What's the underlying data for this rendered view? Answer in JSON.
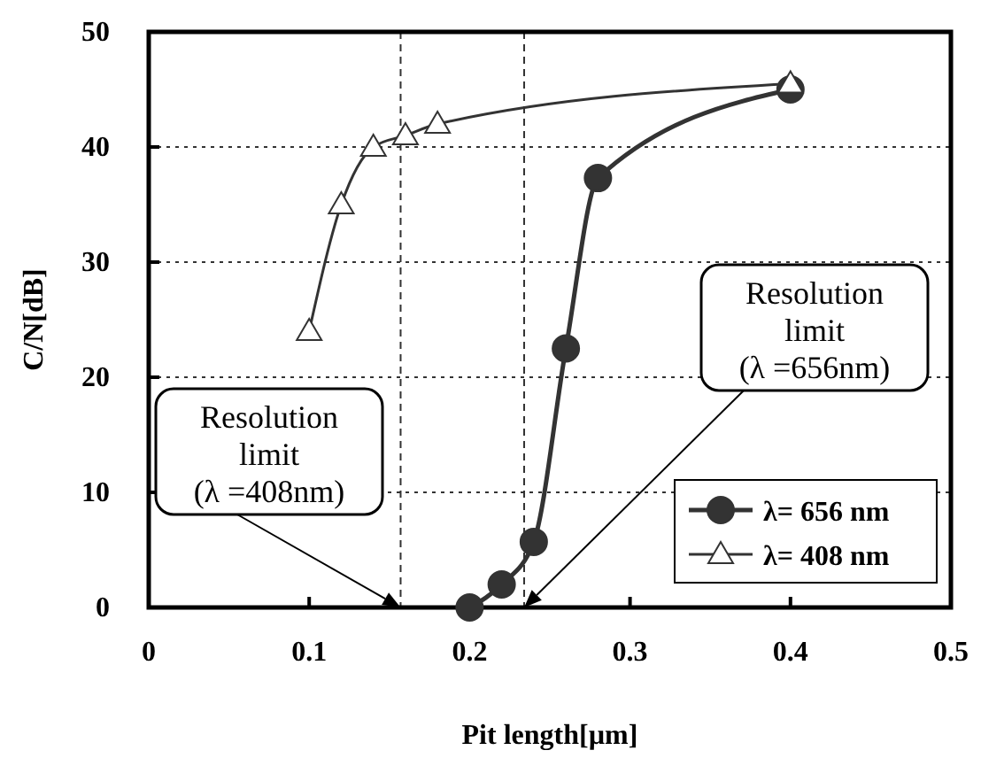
{
  "chart_data": {
    "type": "line",
    "xlabel": "Pit length[µm]",
    "ylabel": "C/N[dB]",
    "xlim": [
      0,
      0.5
    ],
    "ylim": [
      0,
      50
    ],
    "xticks": [
      0,
      0.1,
      0.2,
      0.3,
      0.4,
      0.5
    ],
    "yticks": [
      0,
      10,
      20,
      30,
      40,
      50
    ],
    "grid": "y",
    "legend": "bottom right",
    "series": [
      {
        "name": "λ= 656 nm",
        "color": "#333333",
        "marker": "circle",
        "x": [
          0.2,
          0.22,
          0.24,
          0.26,
          0.28,
          0.4
        ],
        "values": [
          0,
          2,
          5.7,
          22.5,
          37.3,
          45
        ]
      },
      {
        "name": "λ= 408 nm",
        "color": "#333333",
        "marker": "triangle",
        "x": [
          0.1,
          0.12,
          0.14,
          0.16,
          0.18,
          0.4
        ],
        "values": [
          24,
          35,
          40,
          41,
          42,
          45.5
        ]
      }
    ],
    "ref_lines": [
      {
        "axis": "x",
        "value": 0.157,
        "line_style": "dashed",
        "color": "#333333"
      },
      {
        "axis": "x",
        "value": 0.234,
        "line_style": "dashed",
        "color": "#333333"
      }
    ],
    "annotations": [
      "Resolution\nlimit\n(λ =408nm)",
      "Resolution\nlimit\n(λ =656nm)"
    ]
  }
}
